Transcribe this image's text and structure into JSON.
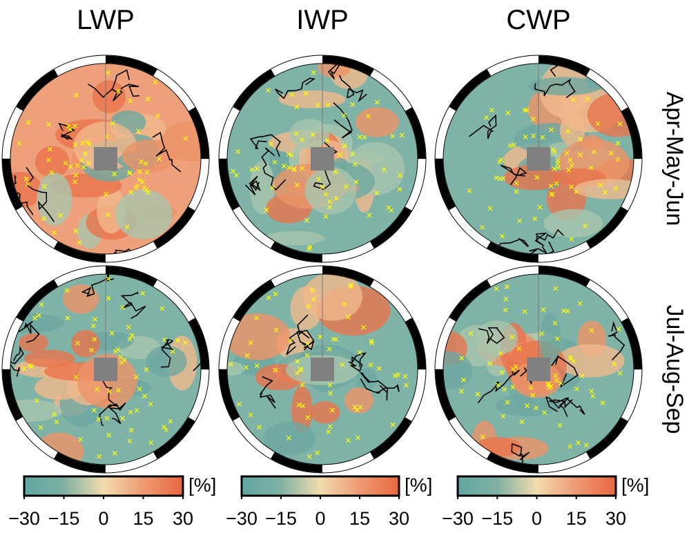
{
  "columns": [
    "LWP",
    "IWP",
    "CWP"
  ],
  "rows": [
    "Apr-May-Jun",
    "Jul-Aug-Sep"
  ],
  "colorbar": {
    "unit": "[%]",
    "lim": [
      -30,
      30
    ],
    "ticks": [
      {
        "value": -30,
        "label": "−30"
      },
      {
        "value": -15,
        "label": "−15"
      },
      0,
      15,
      30
    ],
    "colors": [
      "#5fa6a2",
      "#7fb1a3",
      "#f2dcae",
      "#ee9a73",
      "#e8673f"
    ]
  }
}
